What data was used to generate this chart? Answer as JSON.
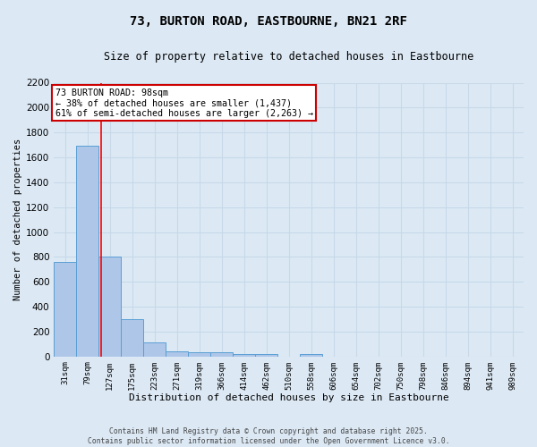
{
  "title_line1": "73, BURTON ROAD, EASTBOURNE, BN21 2RF",
  "title_line2": "Size of property relative to detached houses in Eastbourne",
  "xlabel": "Distribution of detached houses by size in Eastbourne",
  "ylabel": "Number of detached properties",
  "bar_labels": [
    "31sqm",
    "79sqm",
    "127sqm",
    "175sqm",
    "223sqm",
    "271sqm",
    "319sqm",
    "366sqm",
    "414sqm",
    "462sqm",
    "510sqm",
    "558sqm",
    "606sqm",
    "654sqm",
    "702sqm",
    "750sqm",
    "798sqm",
    "846sqm",
    "894sqm",
    "941sqm",
    "989sqm"
  ],
  "bar_values": [
    760,
    1690,
    800,
    300,
    115,
    40,
    35,
    35,
    20,
    20,
    0,
    20,
    0,
    0,
    0,
    0,
    0,
    0,
    0,
    0,
    0
  ],
  "bar_color": "#aec6e8",
  "bar_edge_color": "#5a9fd4",
  "grid_color": "#c8d8e8",
  "background_color": "#dce9f5",
  "red_line_x": 1.62,
  "annotation_text": "73 BURTON ROAD: 98sqm\n← 38% of detached houses are smaller (1,437)\n61% of semi-detached houses are larger (2,263) →",
  "annotation_box_color": "#ffffff",
  "annotation_border_color": "#cc0000",
  "ylim": [
    0,
    2200
  ],
  "yticks": [
    0,
    200,
    400,
    600,
    800,
    1000,
    1200,
    1400,
    1600,
    1800,
    2000,
    2200
  ],
  "footer_line1": "Contains HM Land Registry data © Crown copyright and database right 2025.",
  "footer_line2": "Contains public sector information licensed under the Open Government Licence v3.0."
}
